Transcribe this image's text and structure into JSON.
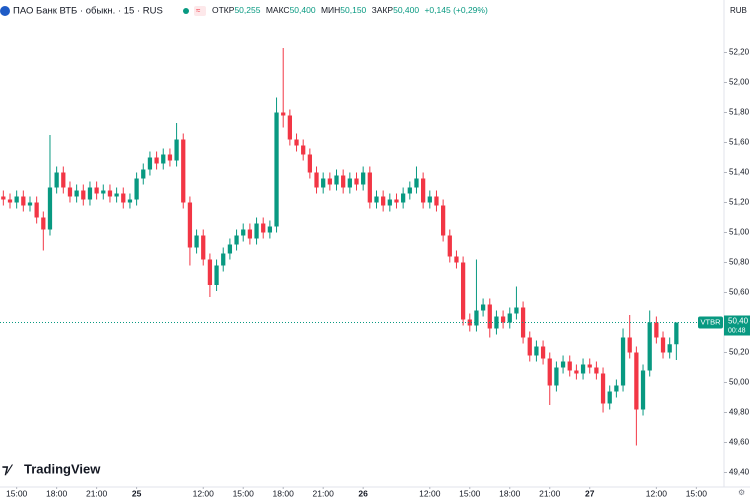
{
  "header": {
    "title": "ПАО Банк ВТБ · обыкн. · 15 · RUS",
    "ohlc": [
      {
        "label": "ОТКР",
        "value": "50,255"
      },
      {
        "label": "МАКС",
        "value": "50,400"
      },
      {
        "label": "МИН",
        "value": "50,150"
      },
      {
        "label": "ЗАКР",
        "value": "50,400"
      }
    ],
    "change": "+0,145 (+0,29%)",
    "currency": "RUB"
  },
  "price_tag": {
    "symbol": "VTBR",
    "price": "50,40",
    "countdown": "00:48"
  },
  "logo": "TradingView",
  "chart_data": {
    "type": "candlestick",
    "up_color": "#089981",
    "down_color": "#f23645",
    "grid": false,
    "x": [
      -2,
      -1,
      0,
      1,
      2,
      3,
      4,
      5,
      6,
      7,
      8,
      9,
      10,
      11,
      12,
      13,
      14,
      15,
      16,
      17,
      18,
      19,
      20,
      21,
      22,
      23,
      24,
      25,
      26,
      27,
      28,
      29,
      30,
      31,
      32,
      33,
      34,
      35,
      36,
      37,
      38,
      39,
      40,
      41,
      42,
      43,
      44,
      45,
      46,
      47,
      48,
      49,
      50,
      51,
      52,
      53,
      54,
      55,
      56,
      57,
      58,
      59,
      60,
      61,
      62,
      63,
      64,
      65,
      66,
      67,
      68,
      69,
      70,
      71,
      72,
      73,
      74,
      75,
      76,
      77,
      78,
      79,
      80,
      81,
      82,
      83,
      84,
      85,
      86,
      87,
      88,
      89,
      90,
      91,
      92,
      93,
      94,
      95,
      96,
      97,
      98,
      99
    ],
    "open": [
      51.24,
      51.22,
      51.2,
      51.24,
      51.18,
      51.2,
      51.1,
      51.02,
      51.3,
      51.4,
      51.3,
      51.24,
      51.28,
      51.22,
      51.3,
      51.26,
      51.28,
      51.24,
      51.26,
      51.2,
      51.22,
      51.36,
      51.42,
      51.5,
      51.46,
      51.52,
      51.48,
      51.62,
      51.2,
      50.9,
      50.98,
      50.82,
      50.65,
      50.78,
      50.86,
      50.92,
      50.98,
      51.02,
      50.96,
      51.06,
      51.0,
      51.04,
      51.8,
      51.78,
      51.62,
      51.58,
      51.52,
      51.4,
      51.3,
      51.36,
      51.32,
      51.38,
      51.3,
      51.36,
      51.32,
      51.4,
      51.2,
      51.24,
      51.18,
      51.22,
      51.2,
      51.26,
      51.3,
      51.36,
      51.2,
      51.24,
      51.18,
      50.98,
      50.84,
      50.8,
      50.42,
      50.38,
      50.48,
      50.52,
      50.36,
      50.44,
      50.4,
      50.46,
      50.5,
      50.3,
      50.18,
      50.24,
      50.16,
      49.98,
      50.1,
      50.14,
      50.08,
      50.06,
      50.12,
      50.1,
      50.06,
      49.86,
      49.94,
      49.98,
      50.3,
      50.2,
      49.82,
      50.08,
      50.4,
      50.3,
      50.2,
      50.255
    ],
    "high": [
      51.28,
      51.26,
      51.28,
      51.28,
      51.24,
      51.24,
      51.14,
      51.65,
      51.44,
      51.44,
      51.34,
      51.32,
      51.32,
      51.34,
      51.34,
      51.32,
      51.32,
      51.3,
      51.3,
      51.26,
      51.4,
      51.46,
      51.54,
      51.54,
      51.56,
      51.56,
      51.73,
      51.66,
      51.24,
      51.02,
      51.02,
      50.86,
      50.82,
      50.9,
      50.96,
      51.02,
      51.06,
      51.06,
      51.1,
      51.1,
      51.08,
      51.9,
      52.23,
      51.82,
      51.66,
      51.62,
      51.56,
      51.44,
      51.4,
      51.4,
      51.42,
      51.42,
      51.4,
      51.4,
      51.44,
      51.44,
      51.28,
      51.28,
      51.26,
      51.26,
      51.3,
      51.34,
      51.44,
      51.4,
      51.28,
      51.28,
      51.22,
      51.02,
      50.88,
      50.84,
      50.46,
      50.82,
      50.56,
      50.56,
      50.48,
      50.48,
      50.5,
      50.64,
      50.54,
      50.34,
      50.28,
      50.28,
      50.2,
      50.14,
      50.18,
      50.18,
      50.12,
      50.16,
      50.16,
      50.14,
      50.1,
      49.98,
      50.02,
      50.36,
      50.45,
      50.24,
      50.12,
      50.48,
      50.44,
      50.34,
      50.3,
      50.4
    ],
    "low": [
      51.18,
      51.16,
      51.16,
      51.14,
      51.14,
      51.06,
      50.88,
      50.98,
      51.26,
      51.26,
      51.2,
      51.2,
      51.18,
      51.18,
      51.22,
      51.22,
      51.2,
      51.2,
      51.16,
      51.16,
      51.18,
      51.32,
      51.38,
      51.42,
      51.42,
      51.44,
      51.44,
      51.16,
      50.78,
      50.86,
      50.78,
      50.57,
      50.61,
      50.74,
      50.82,
      50.88,
      50.94,
      50.92,
      50.92,
      50.96,
      50.96,
      51.0,
      51.7,
      51.58,
      51.54,
      51.48,
      51.36,
      51.26,
      51.26,
      51.28,
      51.28,
      51.26,
      51.26,
      51.28,
      51.28,
      51.16,
      51.16,
      51.14,
      51.14,
      51.16,
      51.16,
      51.22,
      51.26,
      51.16,
      51.16,
      51.14,
      50.94,
      50.8,
      50.76,
      50.38,
      50.34,
      50.34,
      50.44,
      50.3,
      50.32,
      50.36,
      50.36,
      50.42,
      50.26,
      50.14,
      50.14,
      50.12,
      49.85,
      49.94,
      50.06,
      50.04,
      50.02,
      50.02,
      50.06,
      50.02,
      49.8,
      49.82,
      49.9,
      49.94,
      50.16,
      49.58,
      49.78,
      50.04,
      50.26,
      50.16,
      50.16,
      50.15
    ],
    "close": [
      51.22,
      51.2,
      51.24,
      51.18,
      51.2,
      51.1,
      51.02,
      51.3,
      51.4,
      51.3,
      51.24,
      51.28,
      51.22,
      51.3,
      51.26,
      51.28,
      51.24,
      51.26,
      51.2,
      51.22,
      51.36,
      51.42,
      51.5,
      51.46,
      51.52,
      51.48,
      51.62,
      51.2,
      50.9,
      50.98,
      50.82,
      50.65,
      50.78,
      50.86,
      50.92,
      50.98,
      51.02,
      50.96,
      51.06,
      51.0,
      51.04,
      51.8,
      51.78,
      51.62,
      51.58,
      51.52,
      51.4,
      51.3,
      51.36,
      51.32,
      51.38,
      51.3,
      51.36,
      51.32,
      51.4,
      51.2,
      51.24,
      51.18,
      51.22,
      51.2,
      51.26,
      51.3,
      51.36,
      51.2,
      51.24,
      51.18,
      50.98,
      50.84,
      50.8,
      50.42,
      50.38,
      50.48,
      50.52,
      50.36,
      50.44,
      50.4,
      50.46,
      50.5,
      50.3,
      50.18,
      50.24,
      50.16,
      49.98,
      50.1,
      50.14,
      50.08,
      50.06,
      50.12,
      50.1,
      50.06,
      49.86,
      49.94,
      49.98,
      50.3,
      50.2,
      49.82,
      50.08,
      50.4,
      50.3,
      50.2,
      50.255,
      50.4
    ],
    "xlim": [
      -2.5,
      106
    ],
    "xticks": [
      {
        "value": 0,
        "label": "15:00"
      },
      {
        "value": 6,
        "label": "18:00"
      },
      {
        "value": 12,
        "label": "21:00"
      },
      {
        "value": 18,
        "label": "25"
      },
      {
        "value": 28,
        "label": "12:00"
      },
      {
        "value": 34,
        "label": "15:00"
      },
      {
        "value": 40,
        "label": "18:00"
      },
      {
        "value": 46,
        "label": "21:00"
      },
      {
        "value": 52,
        "label": "26"
      },
      {
        "value": 62,
        "label": "12:00"
      },
      {
        "value": 68,
        "label": "15:00"
      },
      {
        "value": 74,
        "label": "18:00"
      },
      {
        "value": 80,
        "label": "21:00"
      },
      {
        "value": 86,
        "label": "27"
      },
      {
        "value": 96,
        "label": "12:00"
      },
      {
        "value": 102,
        "label": "15:00"
      }
    ],
    "ylim": [
      49.3,
      52.55
    ],
    "yticks": [
      {
        "value": 52.2,
        "label": "52,20"
      },
      {
        "value": 52.0,
        "label": "52,00"
      },
      {
        "value": 51.8,
        "label": "51,80"
      },
      {
        "value": 51.6,
        "label": "51,60"
      },
      {
        "value": 51.4,
        "label": "51,40"
      },
      {
        "value": 51.2,
        "label": "51,20"
      },
      {
        "value": 51.0,
        "label": "51,00"
      },
      {
        "value": 50.8,
        "label": "50,80"
      },
      {
        "value": 50.6,
        "label": "50,60"
      },
      {
        "value": 50.2,
        "label": "50,20"
      },
      {
        "value": 50.0,
        "label": "50,00"
      },
      {
        "value": 49.8,
        "label": "49,80"
      },
      {
        "value": 49.6,
        "label": "49,60"
      },
      {
        "value": 49.4,
        "label": "49,40"
      }
    ]
  }
}
